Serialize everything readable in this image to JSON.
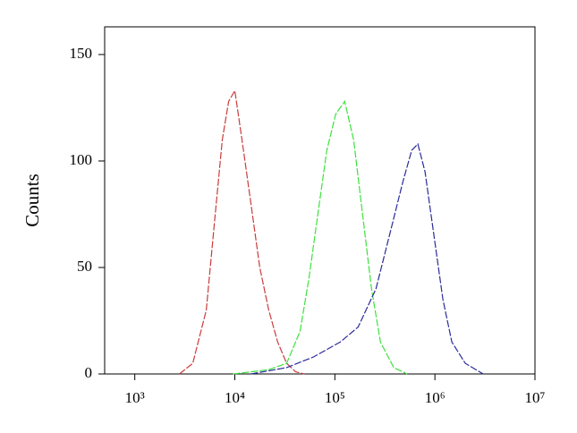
{
  "chart_data": {
    "type": "line",
    "y_label": "Counts",
    "x_log": true,
    "xlim": [
      500,
      10000000
    ],
    "xticks": [
      {
        "value": 1000,
        "label": "10³"
      },
      {
        "value": 10000,
        "label": "10⁴"
      },
      {
        "value": 100000,
        "label": "10⁵"
      },
      {
        "value": 1000000,
        "label": "10⁶"
      },
      {
        "value": 10000000,
        "label": "10⁷"
      }
    ],
    "ylim": [
      0,
      163
    ],
    "yticks": [
      0,
      50,
      100,
      150
    ],
    "series": [
      {
        "color": "#c83c3c",
        "x": [
          2795,
          3800,
          5180,
          6370,
          7500,
          8670,
          10000,
          11790,
          14490,
          17780,
          21840,
          26830,
          32970,
          40470,
          49700
        ],
        "values": [
          0,
          5,
          30,
          75,
          110,
          128,
          133,
          110,
          80,
          50,
          30,
          15,
          5,
          1,
          0
        ]
      },
      {
        "color": "#3ee03e",
        "x": [
          9600,
          21840,
          32970,
          44900,
          55100,
          67600,
          83100,
          102000,
          125400,
          154100,
          189300,
          232500,
          285600,
          388000,
          528000
        ],
        "values": [
          0,
          2,
          5,
          20,
          45,
          75,
          105,
          122,
          128,
          110,
          75,
          40,
          15,
          3,
          0
        ]
      },
      {
        "color": "#2a2a9a",
        "x": [
          14490,
          32970,
          61100,
          113200,
          170600,
          257400,
          350800,
          477300,
          586000,
          676000,
          797000,
          979000,
          1202000,
          1478000,
          2013000,
          3035000
        ],
        "values": [
          0,
          3,
          8,
          15,
          22,
          40,
          65,
          90,
          105,
          108,
          95,
          65,
          35,
          15,
          5,
          0
        ]
      }
    ]
  }
}
